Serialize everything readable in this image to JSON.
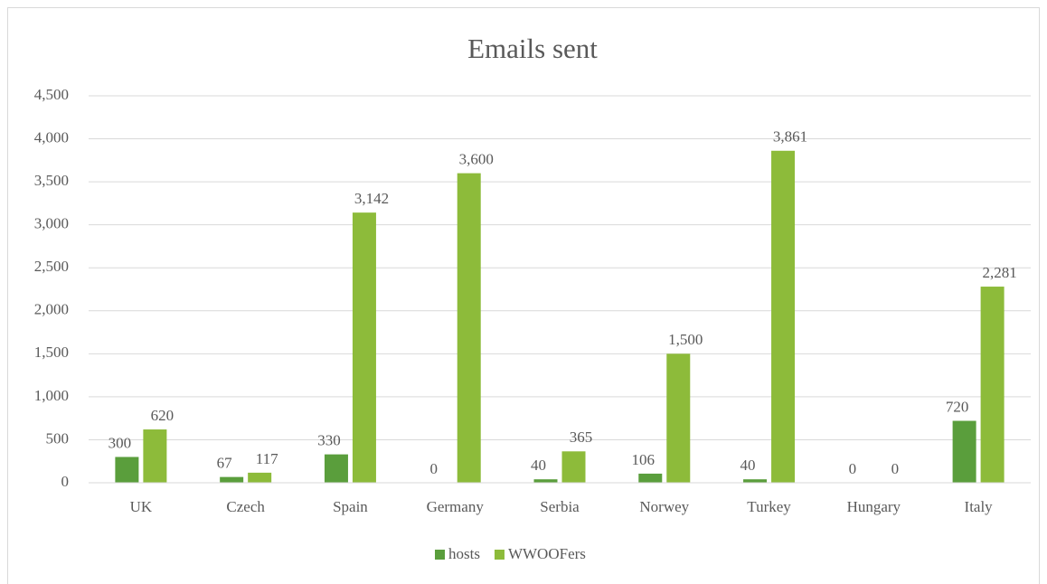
{
  "chart_data": {
    "type": "bar",
    "title": "Emails sent",
    "categories": [
      "UK",
      "Czech",
      "Spain",
      "Germany",
      "Serbia",
      "Norwey",
      "Turkey",
      "Hungary",
      "Italy"
    ],
    "series": [
      {
        "name": "hosts",
        "color": "#5a9e3c",
        "values": [
          300,
          67,
          330,
          0,
          40,
          106,
          40,
          0,
          720
        ]
      },
      {
        "name": "WWOOFers",
        "color": "#8dbb3a",
        "values": [
          620,
          117,
          3142,
          3600,
          365,
          1500,
          3861,
          0,
          2281
        ],
        "value_labels": [
          "620",
          "117",
          "3,142",
          "3,600",
          "365",
          "1,500",
          "3,861",
          "0",
          "2,281"
        ]
      }
    ],
    "ylim": [
      0,
      4500
    ],
    "yticks": [
      0,
      500,
      {
        "value": 1000,
        "label": "1,000"
      },
      {
        "value": 1500,
        "label": "1,500"
      },
      {
        "value": 2000,
        "label": "2,000"
      },
      {
        "value": 2500,
        "label": "2,500"
      },
      {
        "value": 3000,
        "label": "3,000"
      },
      {
        "value": 3500,
        "label": "3,500"
      },
      {
        "value": 4000,
        "label": "4,000"
      },
      {
        "value": 4500,
        "label": "4,500"
      }
    ],
    "grid": true,
    "legend": "bottom"
  }
}
